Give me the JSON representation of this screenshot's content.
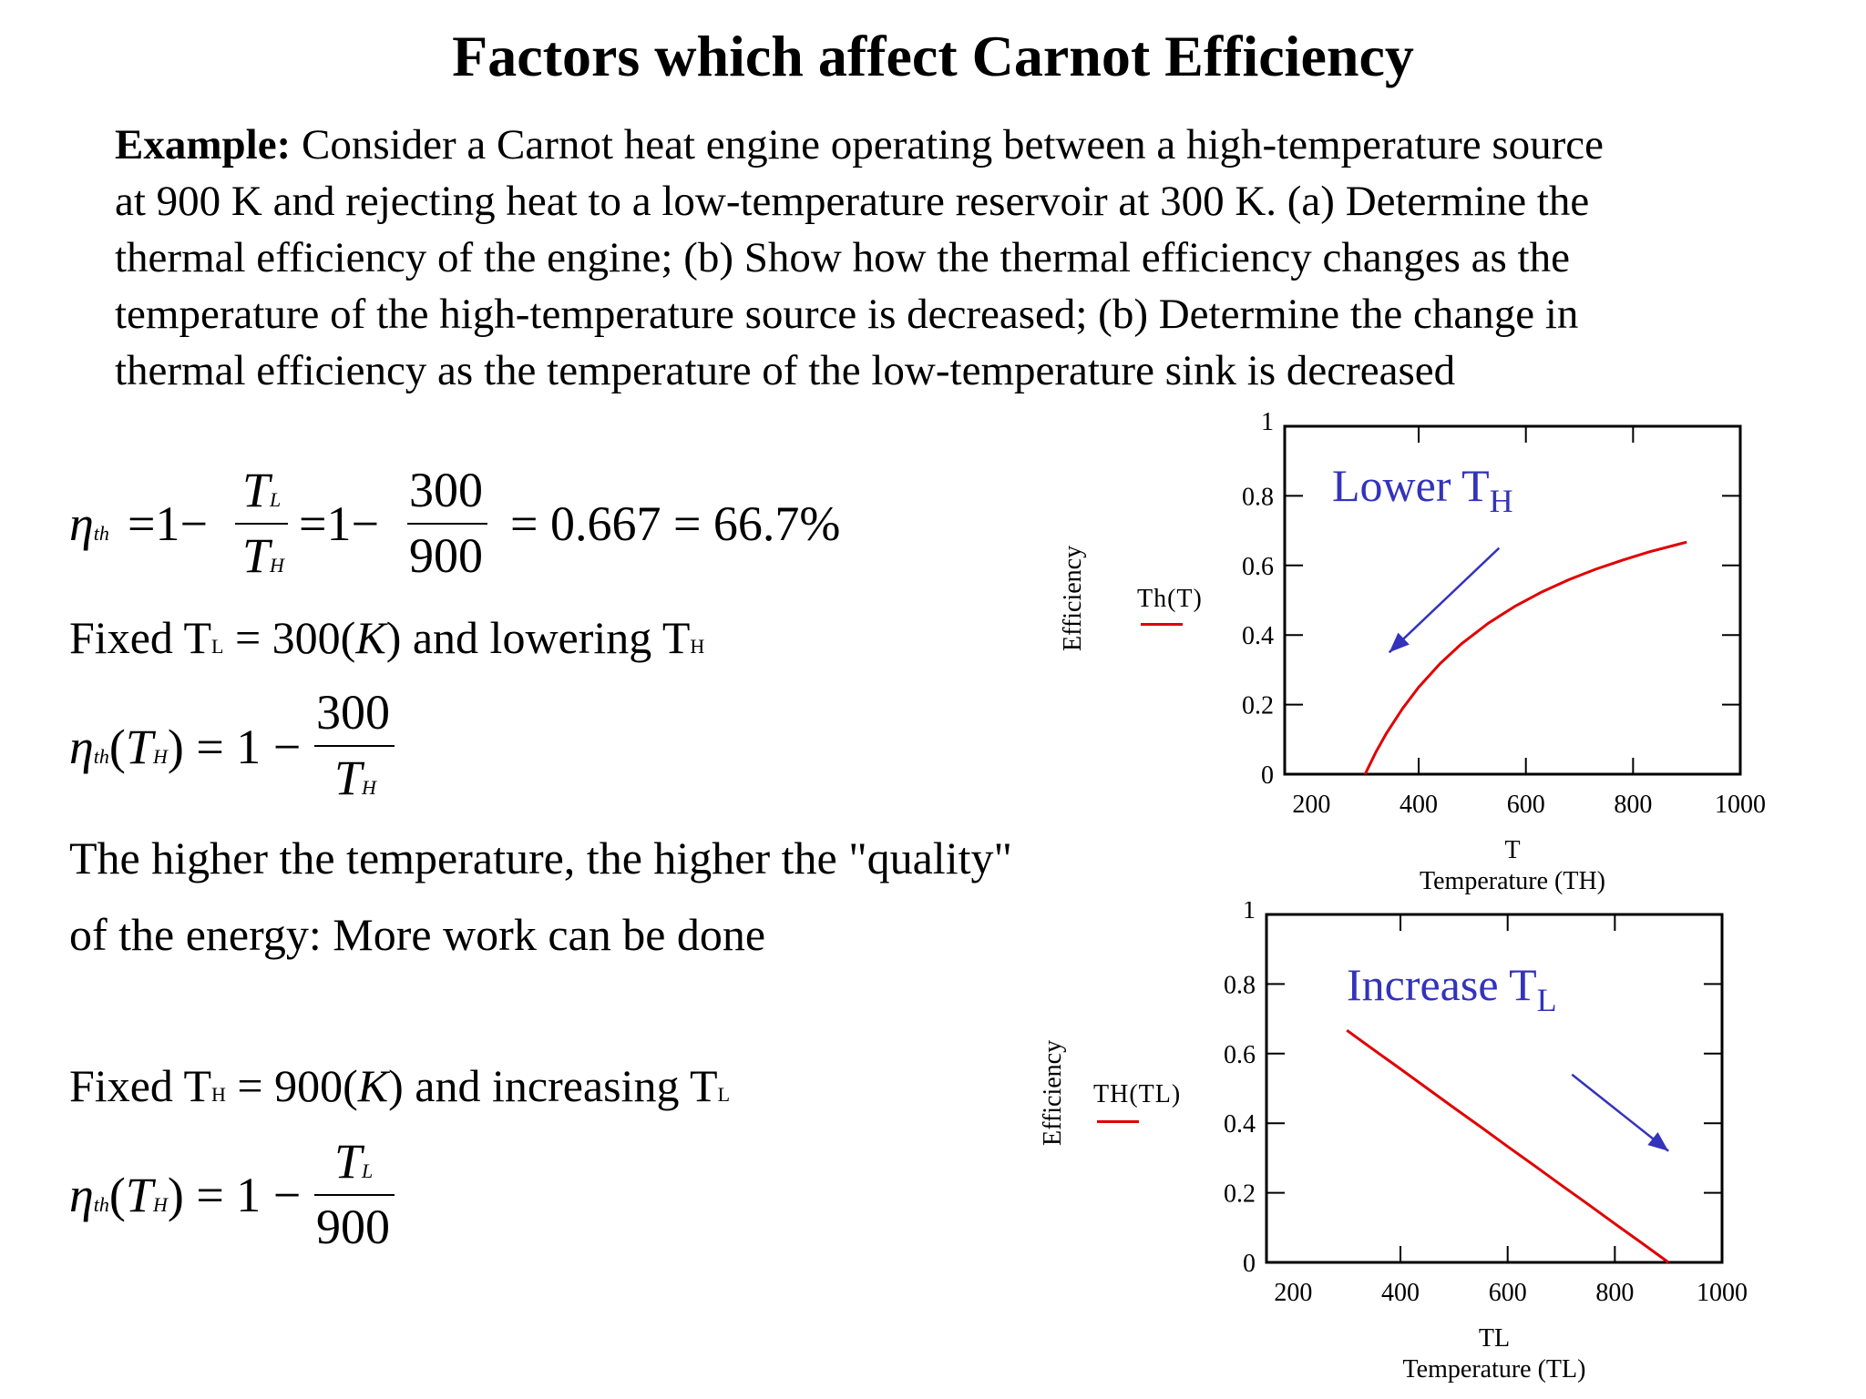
{
  "title": "Factors which affect Carnot Efficiency",
  "example": {
    "lead": "Example:",
    "lines": [
      " Consider a Carnot heat engine operating between a high-temperature source",
      "at 900 K and rejecting heat to a low-temperature reservoir at 300 K.  (a) Determine the",
      "thermal efficiency of the engine;  (b) Show how the thermal efficiency changes as the",
      "temperature of the high-temperature source is decreased; (b) Determine the change in",
      "thermal efficiency as the temperature of the low-temperature sink is decreased"
    ]
  },
  "eq1": {
    "eta": "η",
    "th": "th",
    "eq_one_minus": "=1−",
    "t_num": "T",
    "t_num_sub": "L",
    "t_den": "T",
    "t_den_sub": "H",
    "eq_one_minus_2": "=1−",
    "num": "300",
    "den": "900",
    "result": "= 0.667 = 66.7%"
  },
  "fixed1": {
    "prefix": "Fixed T",
    "sub1": "L",
    "middle": " = 300(",
    "unit": "K",
    "middle2": ") and lowering T",
    "sub2": "H"
  },
  "eq2": {
    "eta": "η",
    "th": "th",
    "arg_open": "(",
    "arg": "T",
    "arg_sub": "H",
    "rhs": ") = 1 −",
    "num": "300",
    "den": "T",
    "den_sub": "H"
  },
  "quality": {
    "line1": "The higher the temperature, the higher the \"quality\"",
    "line2": "of the energy: More work can be done"
  },
  "fixed2": {
    "prefix": "Fixed T",
    "sub1": "H",
    "middle": " = 900(",
    "unit": "K",
    "middle2": ") and increasing T",
    "sub2": "L"
  },
  "eq3": {
    "eta": "η",
    "th": "th",
    "arg_open": "(",
    "arg": "T",
    "arg_sub": "H",
    "rhs": ") = 1 −",
    "num": "T",
    "num_sub": "L",
    "den": "900"
  },
  "chart_data": [
    {
      "type": "line",
      "ylabel": "Efficiency",
      "xlabel_var": "T",
      "xlabel": "Temperature (TH)",
      "legend": "Th(T)",
      "annotation": "Lower T",
      "annotation_sub": "H",
      "xlim": [
        150,
        1000
      ],
      "ylim": [
        0,
        1
      ],
      "xticks": [
        "200",
        "400",
        "600",
        "800",
        "1000"
      ],
      "yticks": [
        "0",
        "0.2",
        "0.4",
        "0.6",
        "0.8",
        "1"
      ],
      "line_color": "#e00000",
      "arrow_color": "#3333bb",
      "series": [
        {
          "x": [
            300,
            320,
            340,
            370,
            400,
            440,
            480,
            530,
            580,
            630,
            680,
            730,
            780,
            830,
            880,
            900
          ],
          "y": [
            0.0,
            0.063,
            0.118,
            0.189,
            0.25,
            0.318,
            0.375,
            0.434,
            0.483,
            0.524,
            0.559,
            0.589,
            0.615,
            0.639,
            0.659,
            0.667
          ]
        }
      ],
      "arrow": {
        "from": [
          550,
          0.65
        ],
        "to": [
          345,
          0.35
        ]
      }
    },
    {
      "type": "line",
      "ylabel": "Efficiency",
      "xlabel_var": "TL",
      "xlabel": "Temperature (TL)",
      "legend": "TH(TL)",
      "annotation": "Increase T",
      "annotation_sub": "L",
      "xlim": [
        150,
        1000
      ],
      "ylim": [
        0,
        1
      ],
      "xticks": [
        "200",
        "400",
        "600",
        "800",
        "1000"
      ],
      "yticks": [
        "0",
        "0.2",
        "0.4",
        "0.6",
        "0.8",
        "1"
      ],
      "line_color": "#e00000",
      "arrow_color": "#3333bb",
      "series": [
        {
          "x": [
            300,
            350,
            400,
            450,
            500,
            550,
            600,
            650,
            700,
            750,
            800,
            850,
            900
          ],
          "y": [
            0.667,
            0.611,
            0.556,
            0.5,
            0.444,
            0.389,
            0.333,
            0.278,
            0.222,
            0.167,
            0.111,
            0.056,
            0.0
          ]
        }
      ],
      "arrow": {
        "from": [
          720,
          0.54
        ],
        "to": [
          900,
          0.32
        ]
      }
    }
  ]
}
